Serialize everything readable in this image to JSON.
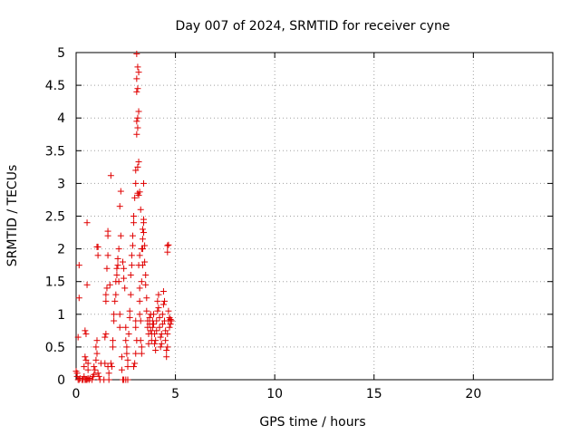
{
  "chart_data": {
    "type": "scatter",
    "title": "Day 007 of 2024, SRMTID for receiver cyne",
    "xlabel": "GPS time / hours",
    "ylabel": "SRMTID / TECUs",
    "xlim": [
      0,
      24
    ],
    "ylim": [
      0,
      5
    ],
    "x_ticks": [
      0,
      5,
      10,
      15,
      20
    ],
    "x_tick_labels": [
      "0",
      "5",
      "10",
      "15",
      "20"
    ],
    "y_ticks": [
      0,
      0.5,
      1,
      1.5,
      2,
      2.5,
      3,
      3.5,
      4,
      4.5,
      5
    ],
    "y_tick_labels": [
      "0",
      "0.5",
      "1",
      "1.5",
      "2",
      "2.5",
      "3",
      "3.5",
      "4",
      "4.5",
      "5"
    ],
    "grid": true,
    "marker": "plus",
    "color": "#e00000",
    "series": [
      {
        "name": "cyne",
        "points": [
          [
            0.0,
            0.13
          ],
          [
            0.05,
            0.1
          ],
          [
            0.05,
            0.05
          ],
          [
            0.1,
            0.0
          ],
          [
            0.15,
            0.0
          ],
          [
            0.2,
            0.02
          ],
          [
            0.3,
            0.0
          ],
          [
            0.35,
            0.0
          ],
          [
            0.4,
            0.05
          ],
          [
            0.45,
            0.0
          ],
          [
            0.5,
            0.0
          ],
          [
            0.55,
            0.0
          ],
          [
            0.6,
            0.02
          ],
          [
            0.65,
            0.0
          ],
          [
            0.7,
            0.02
          ],
          [
            0.8,
            0.0
          ],
          [
            0.85,
            0.05
          ],
          [
            0.9,
            0.08
          ],
          [
            0.1,
            0.65
          ],
          [
            0.15,
            1.75
          ],
          [
            0.15,
            1.25
          ],
          [
            0.4,
            0.2
          ],
          [
            0.45,
            0.35
          ],
          [
            0.45,
            0.75
          ],
          [
            0.5,
            0.7
          ],
          [
            0.5,
            0.3
          ],
          [
            0.55,
            1.45
          ],
          [
            0.55,
            2.4
          ],
          [
            0.6,
            0.15
          ],
          [
            0.6,
            0.25
          ],
          [
            0.9,
            0.2
          ],
          [
            0.95,
            0.15
          ],
          [
            1.0,
            0.3
          ],
          [
            1.0,
            0.5
          ],
          [
            1.05,
            0.4
          ],
          [
            1.05,
            0.6
          ],
          [
            1.05,
            2.03
          ],
          [
            1.1,
            2.03
          ],
          [
            1.1,
            1.9
          ],
          [
            1.1,
            0.1
          ],
          [
            1.15,
            0.05
          ],
          [
            1.2,
            0.0
          ],
          [
            1.25,
            0.25
          ],
          [
            1.4,
            0.0
          ],
          [
            1.45,
            0.25
          ],
          [
            1.45,
            0.65
          ],
          [
            1.5,
            0.7
          ],
          [
            1.5,
            1.2
          ],
          [
            1.5,
            1.3
          ],
          [
            1.55,
            1.4
          ],
          [
            1.55,
            1.7
          ],
          [
            1.6,
            1.9
          ],
          [
            1.6,
            2.2
          ],
          [
            1.6,
            2.27
          ],
          [
            1.6,
            0.2
          ],
          [
            1.65,
            0.1
          ],
          [
            1.65,
            0.0
          ],
          [
            1.7,
            1.45
          ],
          [
            1.75,
            0.25
          ],
          [
            1.75,
            3.12
          ],
          [
            1.8,
            0.2
          ],
          [
            1.85,
            0.5
          ],
          [
            1.85,
            0.6
          ],
          [
            1.9,
            0.9
          ],
          [
            1.9,
            1.0
          ],
          [
            1.95,
            1.2
          ],
          [
            2.0,
            1.3
          ],
          [
            2.0,
            1.5
          ],
          [
            2.05,
            1.7
          ],
          [
            2.05,
            1.6
          ],
          [
            2.1,
            1.75
          ],
          [
            2.1,
            1.85
          ],
          [
            2.15,
            2.0
          ],
          [
            2.15,
            1.5
          ],
          [
            2.2,
            1.0
          ],
          [
            2.2,
            0.8
          ],
          [
            2.2,
            2.65
          ],
          [
            2.25,
            2.88
          ],
          [
            2.25,
            2.2
          ],
          [
            2.3,
            0.35
          ],
          [
            2.3,
            0.15
          ],
          [
            2.35,
            1.8
          ],
          [
            2.4,
            1.55
          ],
          [
            2.4,
            1.7
          ],
          [
            2.45,
            1.4
          ],
          [
            2.5,
            0.8
          ],
          [
            2.5,
            0.6
          ],
          [
            2.55,
            0.5
          ],
          [
            2.55,
            0.4
          ],
          [
            2.6,
            0.3
          ],
          [
            2.6,
            0.2
          ],
          [
            2.6,
            0.0
          ],
          [
            2.5,
            0.0
          ],
          [
            2.4,
            0.0
          ],
          [
            2.35,
            0.0
          ],
          [
            2.65,
            0.7
          ],
          [
            2.7,
            0.95
          ],
          [
            2.7,
            1.05
          ],
          [
            2.75,
            1.3
          ],
          [
            2.75,
            1.6
          ],
          [
            2.8,
            1.75
          ],
          [
            2.8,
            1.9
          ],
          [
            2.85,
            2.05
          ],
          [
            2.85,
            2.2
          ],
          [
            2.9,
            2.4
          ],
          [
            2.9,
            2.5
          ],
          [
            2.9,
            0.2
          ],
          [
            2.95,
            2.78
          ],
          [
            3.0,
            3.0
          ],
          [
            3.0,
            3.2
          ],
          [
            3.0,
            0.8
          ],
          [
            3.0,
            0.9
          ],
          [
            3.05,
            3.75
          ],
          [
            3.05,
            3.95
          ],
          [
            3.05,
            4.4
          ],
          [
            3.05,
            4.6
          ],
          [
            3.05,
            4.98
          ],
          [
            3.1,
            4.78
          ],
          [
            3.1,
            4.45
          ],
          [
            3.1,
            4.0
          ],
          [
            3.1,
            3.85
          ],
          [
            3.1,
            3.25
          ],
          [
            3.1,
            2.85
          ],
          [
            3.15,
            4.7
          ],
          [
            3.15,
            4.1
          ],
          [
            3.15,
            3.33
          ],
          [
            3.15,
            2.82
          ],
          [
            3.2,
            2.87
          ],
          [
            3.2,
            1.4
          ],
          [
            3.2,
            1.2
          ],
          [
            3.2,
            1.0
          ],
          [
            3.25,
            0.9
          ],
          [
            3.25,
            0.6
          ],
          [
            3.3,
            0.5
          ],
          [
            3.3,
            0.4
          ],
          [
            3.3,
            1.5
          ],
          [
            3.35,
            1.75
          ],
          [
            3.35,
            2.0
          ],
          [
            3.35,
            2.15
          ],
          [
            3.35,
            2.3
          ],
          [
            3.4,
            2.45
          ],
          [
            3.4,
            2.4
          ],
          [
            3.4,
            2.25
          ],
          [
            3.45,
            2.05
          ],
          [
            3.45,
            1.8
          ],
          [
            3.5,
            1.6
          ],
          [
            3.5,
            1.45
          ],
          [
            3.55,
            1.25
          ],
          [
            3.55,
            1.05
          ],
          [
            3.6,
            0.9
          ],
          [
            3.6,
            0.8
          ],
          [
            3.65,
            0.7
          ],
          [
            3.65,
            0.55
          ],
          [
            3.7,
            0.85
          ],
          [
            3.7,
            0.95
          ],
          [
            3.75,
            1.0
          ],
          [
            3.75,
            0.75
          ],
          [
            3.8,
            0.6
          ],
          [
            3.8,
            0.7
          ],
          [
            3.85,
            0.8
          ],
          [
            3.85,
            0.9
          ],
          [
            3.9,
            1.0
          ],
          [
            3.9,
            0.85
          ],
          [
            3.95,
            0.7
          ],
          [
            3.95,
            0.55
          ],
          [
            4.0,
            0.45
          ],
          [
            4.0,
            0.6
          ],
          [
            4.05,
            0.75
          ],
          [
            4.05,
            0.9
          ],
          [
            4.1,
            1.05
          ],
          [
            4.1,
            1.2
          ],
          [
            4.15,
            1.3
          ],
          [
            4.15,
            1.1
          ],
          [
            4.2,
            0.95
          ],
          [
            4.2,
            0.8
          ],
          [
            4.25,
            0.65
          ],
          [
            4.25,
            0.5
          ],
          [
            4.3,
            0.55
          ],
          [
            4.3,
            0.7
          ],
          [
            4.35,
            0.85
          ],
          [
            4.35,
            1.0
          ],
          [
            4.4,
            1.15
          ],
          [
            4.4,
            1.35
          ],
          [
            4.45,
            1.2
          ],
          [
            4.45,
            0.9
          ],
          [
            4.5,
            0.75
          ],
          [
            4.5,
            0.6
          ],
          [
            4.55,
            0.45
          ],
          [
            4.55,
            0.35
          ],
          [
            4.6,
            0.5
          ],
          [
            4.6,
            0.7
          ],
          [
            4.65,
            0.9
          ],
          [
            4.65,
            1.05
          ],
          [
            4.6,
            2.05
          ],
          [
            4.6,
            1.95
          ],
          [
            4.65,
            2.06
          ],
          [
            4.7,
            0.8
          ],
          [
            4.7,
            0.95
          ],
          [
            4.75,
            0.85
          ],
          [
            4.75,
            0.92
          ],
          [
            4.8,
            0.9
          ],
          [
            3.4,
            3.0
          ],
          [
            3.25,
            2.6
          ],
          [
            3.15,
            1.75
          ],
          [
            3.2,
            1.9
          ],
          [
            3.3,
            2.0
          ],
          [
            2.95,
            0.25
          ],
          [
            3.0,
            0.4
          ],
          [
            3.05,
            0.6
          ]
        ]
      }
    ]
  }
}
